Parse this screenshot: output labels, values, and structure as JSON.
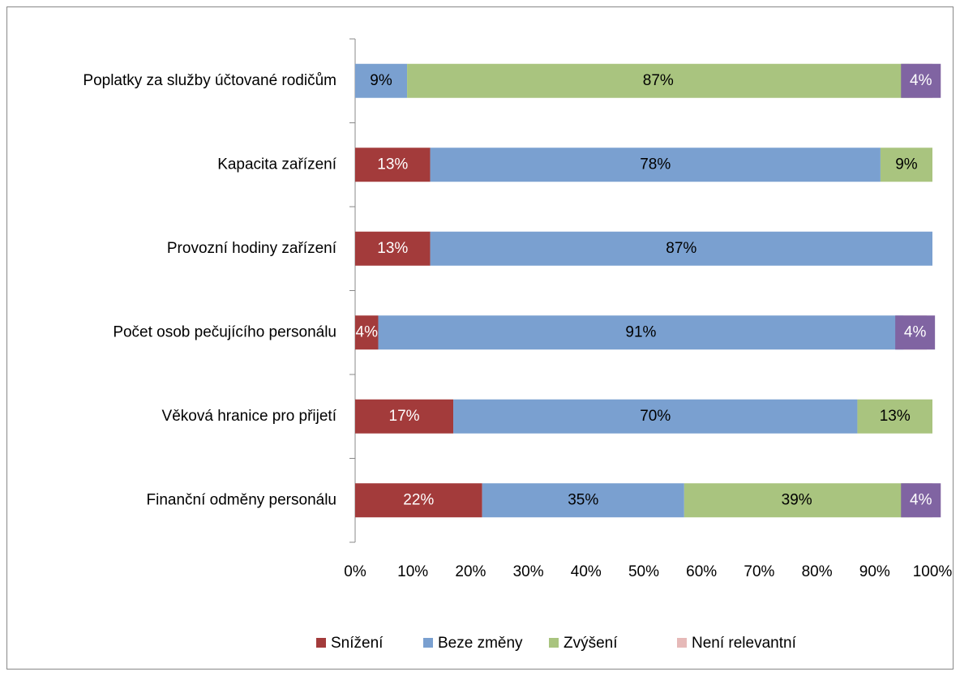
{
  "chart_data": {
    "type": "stacked_bar_horizontal",
    "categories": [
      "Poplatky za služby účtované rodičům",
      "Kapacita zařízení",
      "Provozní hodiny zařízení",
      "Počet osob pečujícího personálu",
      "Věková hranice pro přijetí",
      "Finanční odměny personálu"
    ],
    "series": [
      {
        "name": "Snížení",
        "color": "#a33b3b",
        "values": [
          null,
          13,
          13,
          4,
          17,
          22
        ],
        "value_labels": [
          null,
          "13%",
          "13%",
          "4%",
          "17%",
          "22%"
        ]
      },
      {
        "name": "Beze změny",
        "color": "#7aa0d0",
        "values": [
          9,
          78,
          87,
          91,
          70,
          35
        ],
        "value_labels": [
          "9%",
          "78%",
          "87%",
          "91%",
          "70%",
          "35%"
        ]
      },
      {
        "name": "Zvýšení",
        "color": "#a9c47f",
        "values": [
          87,
          9,
          null,
          null,
          13,
          39
        ],
        "value_labels": [
          "87%",
          "9%",
          null,
          null,
          "13%",
          "39%"
        ]
      },
      {
        "name": "Není relevantní",
        "color": "#e6b9b8",
        "label_box": "#8064a2",
        "values": [
          4,
          null,
          null,
          4,
          null,
          4
        ],
        "value_labels": [
          "4%",
          null,
          null,
          "4%",
          null,
          "4%"
        ]
      }
    ],
    "xlim": [
      0,
      100
    ],
    "xticks": [
      {
        "value": 0,
        "label": "0%"
      },
      {
        "value": 10,
        "label": "10%"
      },
      {
        "value": 20,
        "label": "20%"
      },
      {
        "value": 30,
        "label": "30%"
      },
      {
        "value": 40,
        "label": "40%"
      },
      {
        "value": 50,
        "label": "50%"
      },
      {
        "value": 60,
        "label": "60%"
      },
      {
        "value": 70,
        "label": "70%"
      },
      {
        "value": 80,
        "label": "80%"
      },
      {
        "value": 90,
        "label": "90%"
      },
      {
        "value": 100,
        "label": "100%"
      }
    ],
    "legend": "bottom"
  }
}
